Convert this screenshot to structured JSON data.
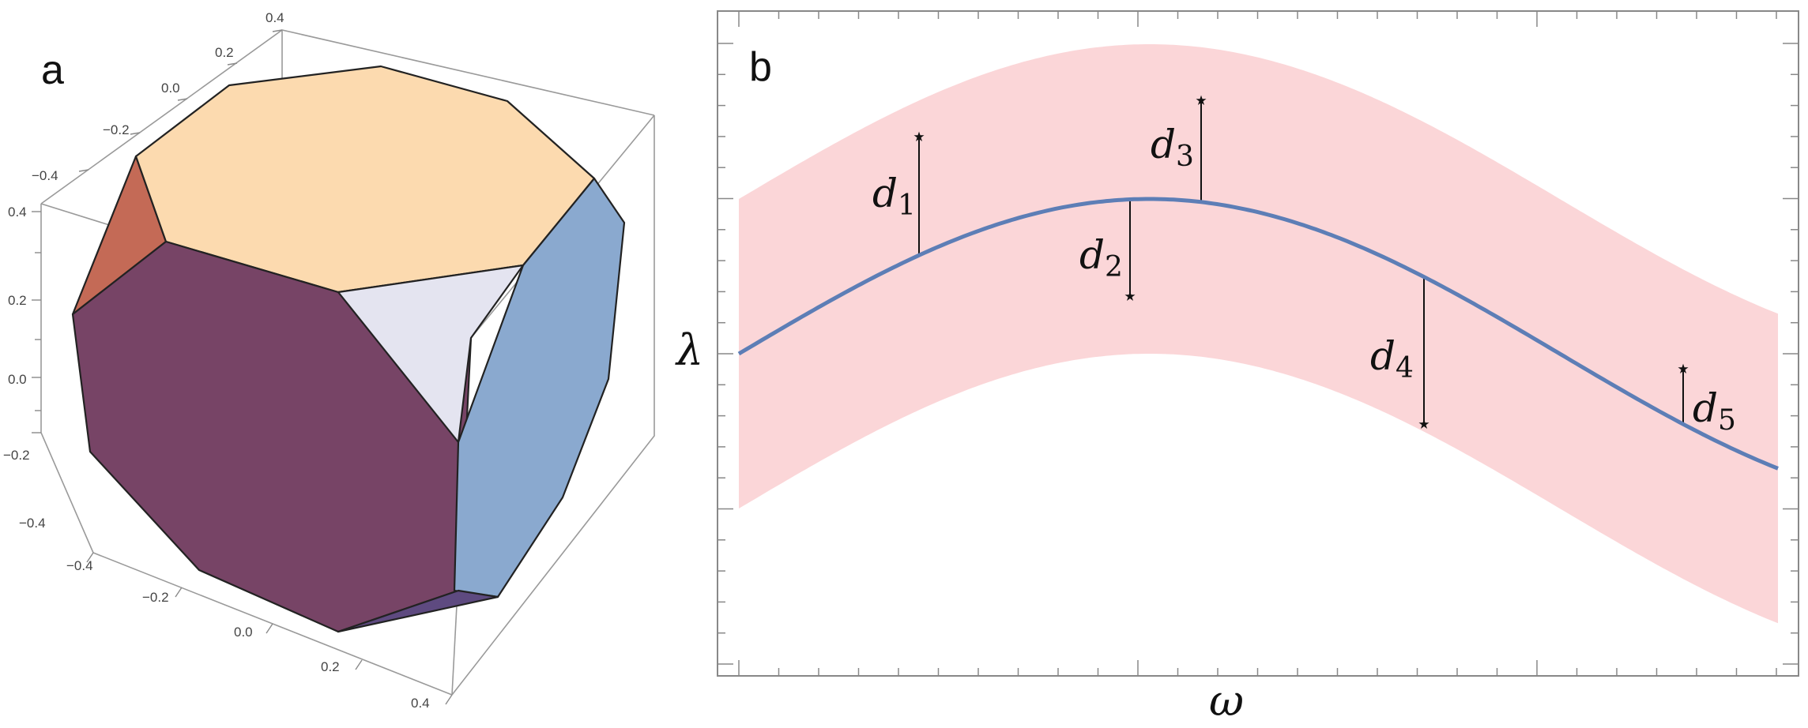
{
  "chart_data": [
    {
      "panel": "a",
      "type": "other",
      "axes": {
        "ticks_top_right": [
          "0.4",
          "0.2",
          "0.0",
          "−0.2",
          "−0.4"
        ],
        "ticks_vertical": [
          "0.4",
          "0.2",
          "0.0",
          "−0.2",
          "−0.4"
        ],
        "ticks_bottom_left": [
          "−0.4",
          "−0.2",
          "0.0",
          "0.2",
          "0.4"
        ]
      },
      "face_colors": {
        "top": "#fcdaaf",
        "front": "#774466",
        "right": "#8aa9cf",
        "corner_left": "#c46a56",
        "corner_inner": "#e4e4f0",
        "corner_bottom": "#5e4a80"
      }
    },
    {
      "panel": "b",
      "type": "line",
      "xlabel": "ω",
      "ylabel": "λ",
      "curve_color": "#5d7eb6",
      "band_color": "#fbd6d8",
      "deviations": [
        {
          "label": "d",
          "sub": "1"
        },
        {
          "label": "d",
          "sub": "2"
        },
        {
          "label": "d",
          "sub": "3"
        },
        {
          "label": "d",
          "sub": "4"
        },
        {
          "label": "d",
          "sub": "5"
        }
      ]
    }
  ]
}
